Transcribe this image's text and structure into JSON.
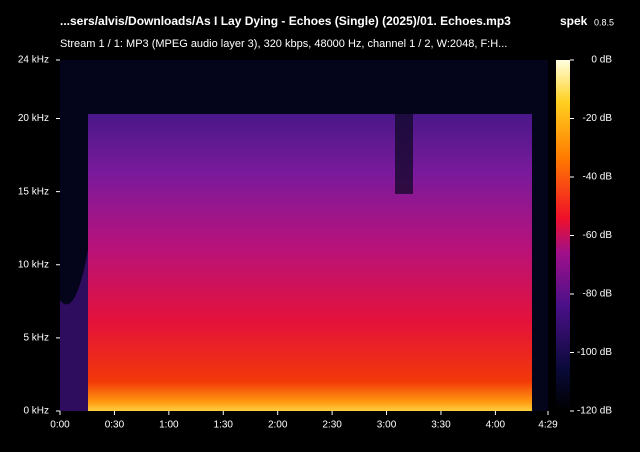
{
  "chart_data": {
    "type": "spectrogram",
    "title": "...sers/alvis/Downloads/As I Lay Dying - Echoes (Single) (2025)/01. Echoes.mp3",
    "app_name": "spek",
    "app_version": "0.8.5",
    "subtitle": "Stream 1 / 1: MP3 (MPEG audio layer 3), 320 kbps, 48000 Hz, channel 1 / 2, W:2048, F:H...",
    "xlim": [
      0,
      269
    ],
    "xticks": [
      {
        "value": 0,
        "label": "0:00"
      },
      {
        "value": 30,
        "label": "0:30"
      },
      {
        "value": 60,
        "label": "1:00"
      },
      {
        "value": 90,
        "label": "1:30"
      },
      {
        "value": 120,
        "label": "2:00"
      },
      {
        "value": 150,
        "label": "2:30"
      },
      {
        "value": 180,
        "label": "3:00"
      },
      {
        "value": 210,
        "label": "3:30"
      },
      {
        "value": 240,
        "label": "4:00"
      },
      {
        "value": 269,
        "label": "4:29"
      }
    ],
    "ylim": [
      0,
      24
    ],
    "yticks": [
      {
        "value": 0,
        "label": "0 kHz"
      },
      {
        "value": 5,
        "label": "5 kHz"
      },
      {
        "value": 10,
        "label": "10 kHz"
      },
      {
        "value": 15,
        "label": "15 kHz"
      },
      {
        "value": 20,
        "label": "20 kHz"
      },
      {
        "value": 24,
        "label": "24 kHz"
      }
    ],
    "zlim": [
      -120,
      0
    ],
    "zticks": [
      {
        "value": 0,
        "label": "0 dB"
      },
      {
        "value": -20,
        "label": "-20 dB"
      },
      {
        "value": -40,
        "label": "-40 dB"
      },
      {
        "value": -60,
        "label": "-60 dB"
      },
      {
        "value": -80,
        "label": "-80 dB"
      },
      {
        "value": -100,
        "label": "-100 dB"
      },
      {
        "value": -120,
        "label": "-120 dB"
      }
    ]
  }
}
